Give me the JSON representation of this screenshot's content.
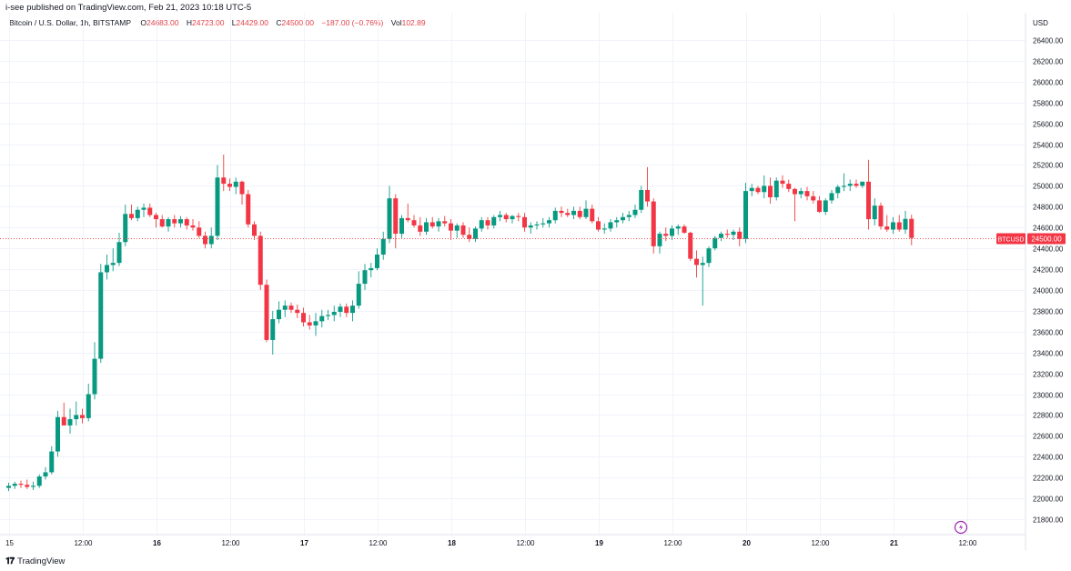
{
  "header": {
    "published": "i-see published on TradingView.com, Feb 21, 2023 10:18 UTC-5",
    "symbol": "Bitcoin / U.S. Dollar, 1h, BITSTAMP",
    "open_label": "O",
    "open": "24683.00",
    "high_label": "H",
    "high": "24723.00",
    "low_label": "L",
    "low": "24429.00",
    "close_label": "C",
    "close": "24500.00",
    "change": "−187.00 (−0.76%)",
    "vol_label": "Vol",
    "vol": "102.89"
  },
  "footer": {
    "brand": "TradingView",
    "logo": "tradingview-logo-icon"
  },
  "colors": {
    "up": "#26a69a",
    "down": "#ef5350",
    "up_body": "#089981",
    "down_body": "#f23645",
    "grid": "#f0f3fa",
    "price_label_bg": "#f23645"
  },
  "chart_data": {
    "type": "candlestick",
    "currency": "USD",
    "ylim": [
      21700,
      26600
    ],
    "y_ticks": [
      21800,
      22000,
      22200,
      22400,
      22600,
      22800,
      23000,
      23200,
      23400,
      23600,
      23800,
      24000,
      24200,
      24400,
      24600,
      24800,
      25000,
      25200,
      25400,
      25600,
      25800,
      26000,
      26200,
      26400
    ],
    "y_tick_labels": [
      "21800.00",
      "22000.00",
      "22200.00",
      "22400.00",
      "22600.00",
      "22800.00",
      "23000.00",
      "23200.00",
      "23400.00",
      "23600.00",
      "23800.00",
      "24000.00",
      "24200.00",
      "24400.00",
      "24600.00",
      "24800.00",
      "25000.00",
      "25200.00",
      "25400.00",
      "25600.00",
      "25800.00",
      "26000.00",
      "26200.00",
      "26400.00"
    ],
    "x_ticks": [
      {
        "index": 0,
        "label": "15"
      },
      {
        "index": 12,
        "label": "12:00"
      },
      {
        "index": 24,
        "label": "16"
      },
      {
        "index": 36,
        "label": "12:00"
      },
      {
        "index": 48,
        "label": "17"
      },
      {
        "index": 60,
        "label": "12:00"
      },
      {
        "index": 72,
        "label": "18"
      },
      {
        "index": 84,
        "label": "12:00"
      },
      {
        "index": 96,
        "label": "19"
      },
      {
        "index": 108,
        "label": "12:00"
      },
      {
        "index": 120,
        "label": "20"
      },
      {
        "index": 132,
        "label": "12:00"
      },
      {
        "index": 144,
        "label": "21"
      },
      {
        "index": 156,
        "label": "12:00"
      }
    ],
    "bold_x_labels": [
      "16",
      "17",
      "18",
      "19",
      "20",
      "21"
    ],
    "last_price": 24500,
    "last_price_symbol": "BTCUSD",
    "last_price_label": "24500.00",
    "candles": [
      [
        22100,
        22150,
        22070,
        22120
      ],
      [
        22120,
        22160,
        22090,
        22140
      ],
      [
        22140,
        22170,
        22100,
        22130
      ],
      [
        22130,
        22180,
        22090,
        22110
      ],
      [
        22110,
        22160,
        22080,
        22120
      ],
      [
        22120,
        22230,
        22100,
        22210
      ],
      [
        22210,
        22300,
        22180,
        22250
      ],
      [
        22250,
        22500,
        22230,
        22450
      ],
      [
        22450,
        22840,
        22400,
        22780
      ],
      [
        22780,
        22920,
        22700,
        22700
      ],
      [
        22700,
        22860,
        22620,
        22760
      ],
      [
        22760,
        22930,
        22700,
        22800
      ],
      [
        22800,
        22860,
        22720,
        22770
      ],
      [
        22770,
        23100,
        22740,
        23000
      ],
      [
        23000,
        23500,
        22950,
        23340
      ],
      [
        23340,
        24250,
        23300,
        24170
      ],
      [
        24170,
        24340,
        24100,
        24240
      ],
      [
        24240,
        24400,
        24180,
        24260
      ],
      [
        24260,
        24550,
        24230,
        24460
      ],
      [
        24460,
        24820,
        24420,
        24730
      ],
      [
        24730,
        24820,
        24670,
        24690
      ],
      [
        24690,
        24800,
        24660,
        24770
      ],
      [
        24770,
        24830,
        24700,
        24790
      ],
      [
        24790,
        24830,
        24700,
        24720
      ],
      [
        24720,
        24740,
        24600,
        24680
      ],
      [
        24680,
        24720,
        24600,
        24610
      ],
      [
        24610,
        24700,
        24560,
        24680
      ],
      [
        24680,
        24720,
        24600,
        24640
      ],
      [
        24640,
        24710,
        24600,
        24680
      ],
      [
        24680,
        24700,
        24580,
        24620
      ],
      [
        24620,
        24680,
        24570,
        24600
      ],
      [
        24600,
        24660,
        24500,
        24520
      ],
      [
        24520,
        24560,
        24400,
        24440
      ],
      [
        24440,
        24600,
        24400,
        24520
      ],
      [
        24520,
        25200,
        24480,
        25080
      ],
      [
        25080,
        25300,
        24950,
        25020
      ],
      [
        25020,
        25070,
        24950,
        24990
      ],
      [
        24990,
        25080,
        24920,
        25040
      ],
      [
        25040,
        25050,
        24820,
        24920
      ],
      [
        24920,
        24960,
        24600,
        24630
      ],
      [
        24630,
        24660,
        24480,
        24520
      ],
      [
        24520,
        24560,
        24000,
        24050
      ],
      [
        24050,
        24100,
        23500,
        23520
      ],
      [
        23520,
        23800,
        23380,
        23720
      ],
      [
        23720,
        23890,
        23680,
        23810
      ],
      [
        23810,
        23900,
        23740,
        23850
      ],
      [
        23850,
        23880,
        23780,
        23810
      ],
      [
        23810,
        23860,
        23730,
        23780
      ],
      [
        23780,
        23830,
        23650,
        23690
      ],
      [
        23690,
        23760,
        23620,
        23660
      ],
      [
        23660,
        23780,
        23560,
        23700
      ],
      [
        23700,
        23810,
        23640,
        23750
      ],
      [
        23750,
        23810,
        23710,
        23760
      ],
      [
        23760,
        23850,
        23700,
        23790
      ],
      [
        23790,
        23870,
        23740,
        23840
      ],
      [
        23840,
        23870,
        23740,
        23780
      ],
      [
        23780,
        23900,
        23700,
        23850
      ],
      [
        23850,
        24180,
        23820,
        24060
      ],
      [
        24060,
        24250,
        24000,
        24190
      ],
      [
        24190,
        24260,
        24120,
        24210
      ],
      [
        24210,
        24400,
        24190,
        24340
      ],
      [
        24340,
        24560,
        24290,
        24490
      ],
      [
        24490,
        25000,
        24450,
        24880
      ],
      [
        24880,
        24920,
        24400,
        24540
      ],
      [
        24540,
        24720,
        24500,
        24690
      ],
      [
        24690,
        24830,
        24650,
        24670
      ],
      [
        24670,
        24720,
        24600,
        24620
      ],
      [
        24620,
        24700,
        24520,
        24560
      ],
      [
        24560,
        24690,
        24530,
        24650
      ],
      [
        24650,
        24700,
        24590,
        24610
      ],
      [
        24610,
        24690,
        24560,
        24660
      ],
      [
        24660,
        24710,
        24610,
        24640
      ],
      [
        24640,
        24680,
        24480,
        24570
      ],
      [
        24570,
        24640,
        24500,
        24620
      ],
      [
        24620,
        24650,
        24500,
        24530
      ],
      [
        24530,
        24600,
        24460,
        24490
      ],
      [
        24490,
        24610,
        24460,
        24590
      ],
      [
        24590,
        24700,
        24560,
        24670
      ],
      [
        24670,
        24700,
        24580,
        24620
      ],
      [
        24620,
        24720,
        24590,
        24700
      ],
      [
        24700,
        24760,
        24660,
        24720
      ],
      [
        24720,
        24740,
        24650,
        24680
      ],
      [
        24680,
        24720,
        24640,
        24710
      ],
      [
        24710,
        24740,
        24660,
        24700
      ],
      [
        24700,
        24740,
        24560,
        24600
      ],
      [
        24600,
        24650,
        24540,
        24620
      ],
      [
        24620,
        24660,
        24580,
        24630
      ],
      [
        24630,
        24690,
        24600,
        24640
      ],
      [
        24640,
        24700,
        24600,
        24670
      ],
      [
        24670,
        24790,
        24640,
        24760
      ],
      [
        24760,
        24800,
        24700,
        24740
      ],
      [
        24740,
        24780,
        24700,
        24720
      ],
      [
        24720,
        24800,
        24680,
        24760
      ],
      [
        24760,
        24800,
        24680,
        24700
      ],
      [
        24700,
        24860,
        24680,
        24780
      ],
      [
        24780,
        24820,
        24640,
        24660
      ],
      [
        24660,
        24700,
        24560,
        24580
      ],
      [
        24580,
        24640,
        24540,
        24590
      ],
      [
        24590,
        24680,
        24560,
        24650
      ],
      [
        24650,
        24700,
        24600,
        24670
      ],
      [
        24670,
        24740,
        24640,
        24700
      ],
      [
        24700,
        24760,
        24660,
        24720
      ],
      [
        24720,
        24820,
        24690,
        24770
      ],
      [
        24770,
        25000,
        24740,
        24960
      ],
      [
        24960,
        25180,
        24800,
        24850
      ],
      [
        24850,
        24880,
        24350,
        24420
      ],
      [
        24420,
        24560,
        24350,
        24540
      ],
      [
        24540,
        24600,
        24470,
        24520
      ],
      [
        24520,
        24620,
        24480,
        24590
      ],
      [
        24590,
        24630,
        24530,
        24610
      ],
      [
        24610,
        24630,
        24540,
        24550
      ],
      [
        24550,
        24560,
        24280,
        24300
      ],
      [
        24300,
        24380,
        24120,
        24240
      ],
      [
        24240,
        24320,
        23850,
        24260
      ],
      [
        24260,
        24420,
        24220,
        24400
      ],
      [
        24400,
        24520,
        24380,
        24500
      ],
      [
        24500,
        24560,
        24470,
        24540
      ],
      [
        24540,
        24580,
        24500,
        24530
      ],
      [
        24530,
        24580,
        24480,
        24560
      ],
      [
        24560,
        24600,
        24420,
        24490
      ],
      [
        24490,
        25030,
        24450,
        24950
      ],
      [
        24950,
        25020,
        24900,
        24980
      ],
      [
        24980,
        25000,
        24920,
        24940
      ],
      [
        24940,
        25100,
        24880,
        25000
      ],
      [
        25000,
        25080,
        24830,
        24890
      ],
      [
        24890,
        25080,
        24860,
        25050
      ],
      [
        25050,
        25100,
        24980,
        25020
      ],
      [
        25020,
        25060,
        24940,
        24970
      ],
      [
        24970,
        24980,
        24660,
        24920
      ],
      [
        24920,
        24980,
        24880,
        24950
      ],
      [
        24950,
        24990,
        24860,
        24900
      ],
      [
        24900,
        24950,
        24830,
        24860
      ],
      [
        24860,
        24900,
        24740,
        24750
      ],
      [
        24750,
        24880,
        24720,
        24860
      ],
      [
        24860,
        24960,
        24830,
        24930
      ],
      [
        24930,
        25010,
        24880,
        24990
      ],
      [
        24990,
        25120,
        24950,
        25000
      ],
      [
        25000,
        25060,
        24950,
        25020
      ],
      [
        25020,
        25060,
        24980,
        25000
      ],
      [
        25000,
        25040,
        24980,
        25040
      ],
      [
        25040,
        25250,
        24580,
        24680
      ],
      [
        24680,
        24880,
        24620,
        24810
      ],
      [
        24810,
        24840,
        24580,
        24610
      ],
      [
        24610,
        24720,
        24560,
        24580
      ],
      [
        24580,
        24700,
        24540,
        24650
      ],
      [
        24650,
        24720,
        24560,
        24580
      ],
      [
        24580,
        24760,
        24540,
        24683
      ],
      [
        24683,
        24723,
        24429,
        24500
      ]
    ]
  }
}
